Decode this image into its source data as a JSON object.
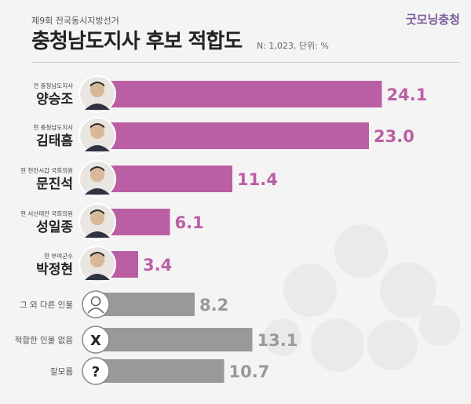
{
  "brand": "굿모닝충청",
  "subtitle": "제9회 전국동시지방선거",
  "title": "충청남도지사 후보 적합도",
  "meta": "N: 1,023, 단위: %",
  "colors": {
    "candidate": "#bb5fa4",
    "other": "#999999",
    "candidate_label": "#ffffff"
  },
  "chart_data": {
    "type": "bar",
    "orientation": "horizontal",
    "unit": "%",
    "xlim": [
      0,
      25
    ],
    "grid": false,
    "legend": "none",
    "bars": [
      {
        "label": "양승조",
        "note": "전 충청남도지사",
        "value": 24.1,
        "group": "candidate",
        "icon": "candidate-photo"
      },
      {
        "label": "김태흠",
        "note": "현 충청남도지사",
        "value": 23.0,
        "group": "candidate",
        "icon": "candidate-photo"
      },
      {
        "label": "문진석",
        "note": "현 천안시갑 국회의원",
        "value": 11.4,
        "group": "candidate",
        "icon": "candidate-photo"
      },
      {
        "label": "성일종",
        "note": "현 서산태안 국회의원",
        "value": 6.1,
        "group": "candidate",
        "icon": "candidate-photo"
      },
      {
        "label": "박정현",
        "note": "현 부여군수",
        "value": 3.4,
        "group": "candidate",
        "icon": "candidate-photo"
      },
      {
        "label": "그 외 다른 인물",
        "value": 8.2,
        "group": "other",
        "icon": "person-icon"
      },
      {
        "label": "적합한 인물 없음",
        "value": 13.1,
        "group": "other",
        "icon": "x-mark",
        "icon_text": "X"
      },
      {
        "label": "잘모름",
        "value": 10.7,
        "group": "other",
        "icon": "question-mark",
        "icon_text": "?"
      }
    ]
  }
}
